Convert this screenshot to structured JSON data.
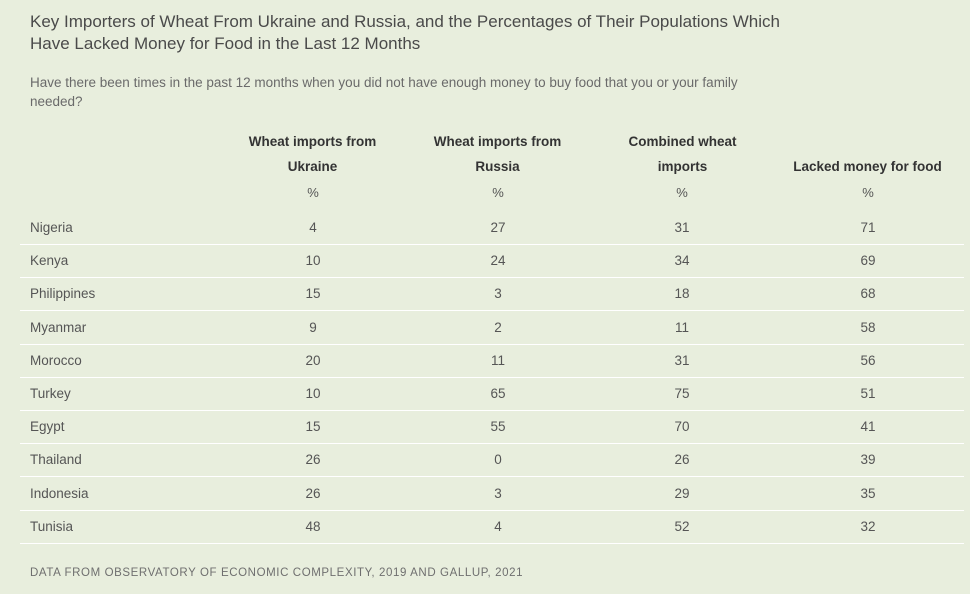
{
  "title": "Key Importers of Wheat From Ukraine and Russia, and the Percentages of Their Populations Which Have Lacked Money for Food in the Last 12 Months",
  "subtitle": "Have there been times in the past 12 months when you did not have enough money to buy food that you or your family needed?",
  "columns": [
    {
      "line1": "Wheat imports from",
      "line2": "Ukraine",
      "unit": "%"
    },
    {
      "line1": "Wheat imports from",
      "line2": "Russia",
      "unit": "%"
    },
    {
      "line1": "Combined wheat",
      "line2": "imports",
      "unit": "%"
    },
    {
      "line1": "",
      "line2": "Lacked money for food",
      "unit": "%"
    }
  ],
  "source": "DATA FROM OBSERVATORY OF ECONOMIC COMPLEXITY, 2019 AND GALLUP, 2021",
  "chart_data": {
    "type": "table",
    "columns": [
      "Wheat imports from Ukraine",
      "Wheat imports from Russia",
      "Combined wheat imports",
      "Lacked money for food"
    ],
    "unit": "%",
    "rows": [
      {
        "country": "Nigeria",
        "values": [
          4,
          27,
          31,
          71
        ]
      },
      {
        "country": "Kenya",
        "values": [
          10,
          24,
          34,
          69
        ]
      },
      {
        "country": "Philippines",
        "values": [
          15,
          3,
          18,
          68
        ]
      },
      {
        "country": "Myanmar",
        "values": [
          9,
          2,
          11,
          58
        ]
      },
      {
        "country": "Morocco",
        "values": [
          20,
          11,
          31,
          56
        ]
      },
      {
        "country": "Turkey",
        "values": [
          10,
          65,
          75,
          51
        ]
      },
      {
        "country": "Egypt",
        "values": [
          15,
          55,
          70,
          41
        ]
      },
      {
        "country": "Thailand",
        "values": [
          26,
          0,
          26,
          39
        ]
      },
      {
        "country": "Indonesia",
        "values": [
          26,
          3,
          29,
          35
        ]
      },
      {
        "country": "Tunisia",
        "values": [
          48,
          4,
          52,
          32
        ]
      }
    ]
  }
}
